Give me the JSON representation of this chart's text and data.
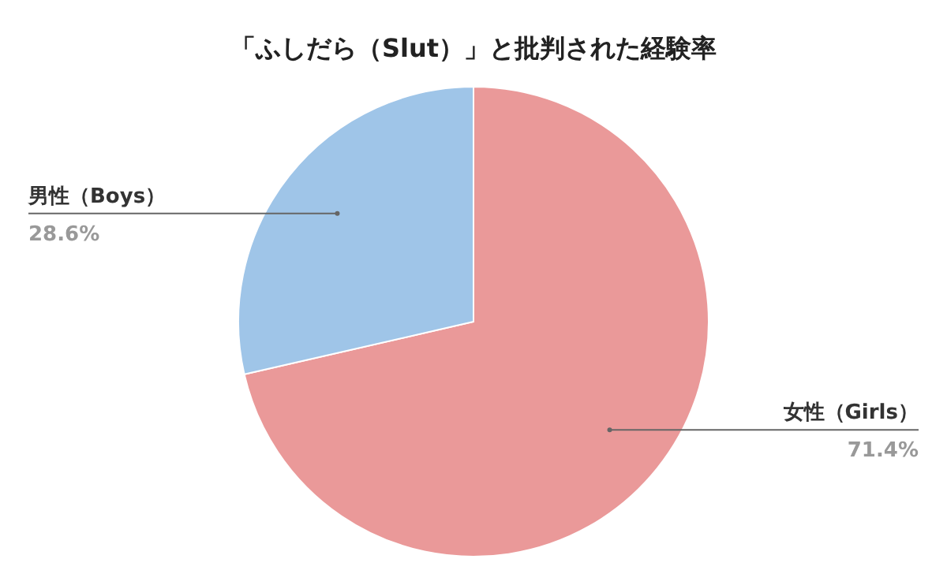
{
  "chart_data": {
    "type": "pie",
    "title": "「ふしだら（Slut）」と批判された経験率",
    "categories": [
      "女性（Girls）",
      "男性（Boys）"
    ],
    "values": [
      71.4,
      28.6
    ],
    "value_labels": [
      "71.4%",
      "28.6%"
    ],
    "colors": [
      "#ea9999",
      "#9fc5e8"
    ]
  }
}
